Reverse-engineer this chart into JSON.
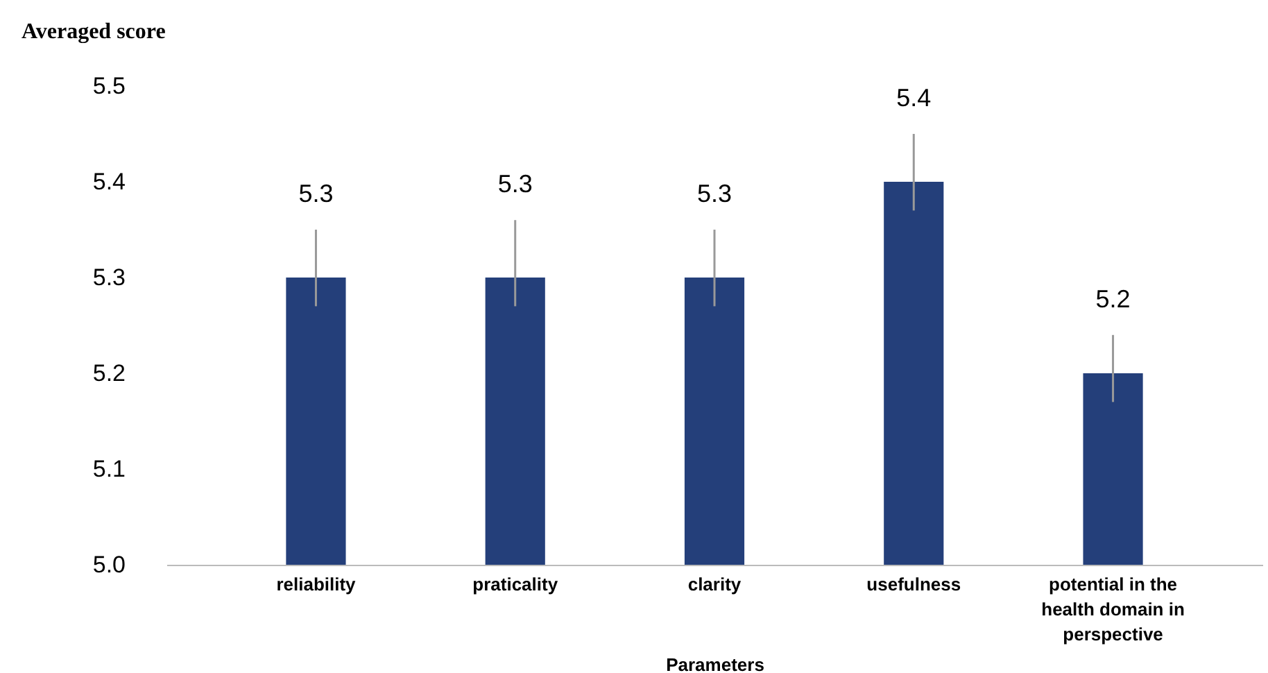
{
  "chart_data": {
    "type": "bar",
    "ylabel": "Averaged score",
    "xlabel": "Parameters",
    "categories": [
      "reliability",
      "praticality",
      "clarity",
      "usefulness",
      "potential in the health domain in perspective"
    ],
    "values": [
      5.3,
      5.3,
      5.3,
      5.4,
      5.2
    ],
    "errors": [
      [
        5.27,
        5.35
      ],
      [
        5.27,
        5.36
      ],
      [
        5.27,
        5.35
      ],
      [
        5.37,
        5.45
      ],
      [
        5.17,
        5.24
      ]
    ],
    "color": "#243f7a",
    "data_labels": true,
    "grid": false,
    "ylim": [
      5.0,
      5.5
    ],
    "yticks": [
      {
        "value": 5.0,
        "label": "5.0"
      },
      5.1,
      5.2,
      5.3,
      5.4,
      5.5
    ]
  }
}
